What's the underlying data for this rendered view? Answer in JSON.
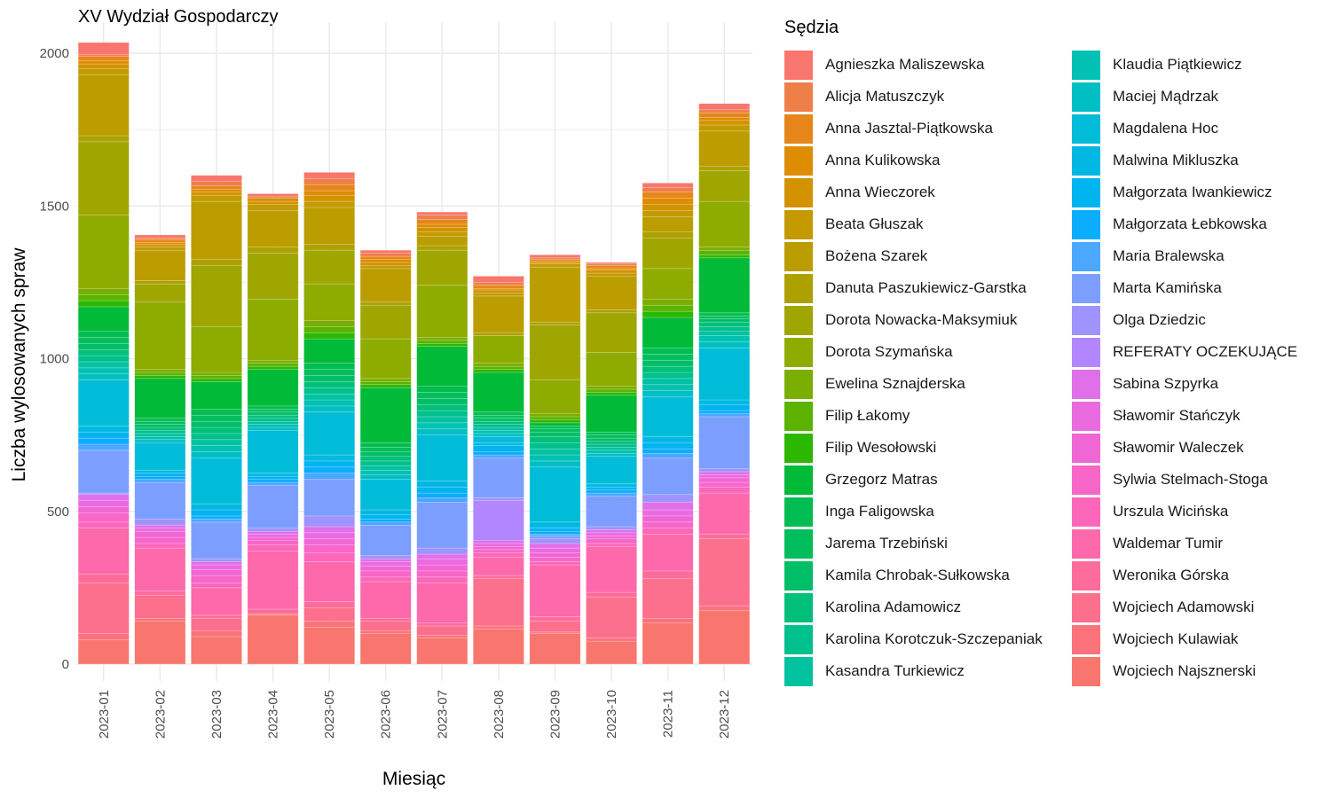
{
  "chart_data": {
    "type": "bar",
    "stacked": true,
    "title": "XV Wydział Gospodarczy",
    "xlabel": "Miesiąc",
    "ylabel": "Liczba wylosowanych spraw",
    "ylim": [
      0,
      2080
    ],
    "yticks": [
      0,
      500,
      1000,
      1500,
      2000
    ],
    "grid": true,
    "legend_title": "Sędzia",
    "legend_position": "right",
    "categories": [
      "2023-01",
      "2023-02",
      "2023-03",
      "2023-04",
      "2023-05",
      "2023-06",
      "2023-07",
      "2023-08",
      "2023-09",
      "2023-10",
      "2023-11",
      "2023-12"
    ],
    "series": [
      {
        "name": "Wojciech Najsznerski",
        "color": "#F8766D",
        "values": [
          80,
          140,
          90,
          160,
          120,
          100,
          85,
          115,
          100,
          75,
          135,
          175
        ]
      },
      {
        "name": "Wojciech Kulawiak",
        "color": "#FB727B",
        "values": [
          20,
          10,
          20,
          5,
          20,
          10,
          10,
          10,
          5,
          10,
          15,
          15
        ]
      },
      {
        "name": "Wojciech Adamowski",
        "color": "#FC6F8D",
        "values": [
          165,
          75,
          40,
          0,
          45,
          30,
          30,
          155,
          35,
          135,
          130,
          220
        ]
      },
      {
        "name": "Weronika Górska",
        "color": "#FE6C9C",
        "values": [
          30,
          15,
          10,
          15,
          20,
          10,
          10,
          10,
          15,
          15,
          25,
          15
        ]
      },
      {
        "name": "Waldemar Tumir",
        "color": "#FD69AB",
        "values": [
          150,
          140,
          90,
          190,
          130,
          120,
          130,
          60,
          170,
          150,
          120,
          135
        ]
      },
      {
        "name": "Urszula Wicińska",
        "color": "#FC67BA",
        "values": [
          20,
          15,
          15,
          20,
          30,
          15,
          20,
          15,
          10,
          10,
          20,
          20
        ]
      },
      {
        "name": "Sylwia Stelmach-Stoga",
        "color": "#F766C8",
        "values": [
          30,
          20,
          25,
          15,
          25,
          20,
          20,
          10,
          15,
          15,
          20,
          15
        ]
      },
      {
        "name": "Sławomir Waleczek",
        "color": "#F166D5",
        "values": [
          20,
          20,
          20,
          10,
          20,
          15,
          20,
          10,
          15,
          10,
          20,
          15
        ]
      },
      {
        "name": "Sławomir Stańczyk",
        "color": "#EA6AE0",
        "values": [
          20,
          10,
          15,
          10,
          20,
          15,
          20,
          10,
          15,
          10,
          20,
          10
        ]
      },
      {
        "name": "Sabina Szpyrka",
        "color": "#E06FEA",
        "values": [
          20,
          10,
          10,
          10,
          20,
          10,
          15,
          10,
          15,
          10,
          25,
          10
        ]
      },
      {
        "name": "REFERATY OCZEKUJĄCE",
        "color": "#B286FF",
        "values": [
          0,
          0,
          0,
          0,
          0,
          0,
          0,
          130,
          0,
          0,
          0,
          0
        ]
      },
      {
        "name": "Olga Dziedzic",
        "color": "#9E93FF",
        "values": [
          5,
          20,
          10,
          10,
          35,
          10,
          20,
          10,
          15,
          10,
          25,
          10
        ]
      },
      {
        "name": "Marta Kamińska",
        "color": "#7C9FFF",
        "values": [
          140,
          120,
          120,
          140,
          120,
          100,
          150,
          130,
          10,
          100,
          120,
          170
        ]
      },
      {
        "name": "Maria Bralewska",
        "color": "#4CA7FF",
        "values": [
          20,
          10,
          10,
          10,
          20,
          10,
          15,
          10,
          5,
          10,
          15,
          10
        ]
      },
      {
        "name": "Małgorzata Łebkowska",
        "color": "#0CADFF",
        "values": [
          20,
          10,
          10,
          10,
          20,
          10,
          15,
          10,
          10,
          10,
          15,
          10
        ]
      },
      {
        "name": "Małgorzata Iwankiewicz",
        "color": "#00B4F0",
        "values": [
          20,
          10,
          20,
          10,
          20,
          15,
          20,
          20,
          10,
          10,
          20,
          20
        ]
      },
      {
        "name": "Malwina Mikluszka",
        "color": "#00B8E2",
        "values": [
          20,
          10,
          20,
          10,
          20,
          15,
          20,
          10,
          20,
          10,
          20,
          15
        ]
      },
      {
        "name": "Magdalena Hoc",
        "color": "#00BCD8",
        "values": [
          150,
          90,
          150,
          140,
          140,
          100,
          150,
          20,
          180,
          90,
          130,
          170
        ]
      },
      {
        "name": "Maciej Mądrzak",
        "color": "#00BFC4",
        "values": [
          20,
          10,
          20,
          10,
          20,
          15,
          20,
          10,
          20,
          10,
          20,
          20
        ]
      },
      {
        "name": "Klaudia Piątkiewicz",
        "color": "#00C1B2",
        "values": [
          20,
          10,
          20,
          10,
          20,
          15,
          20,
          10,
          20,
          10,
          20,
          20
        ]
      },
      {
        "name": "Kasandra Turkiewicz",
        "color": "#00C2A1",
        "values": [
          20,
          10,
          20,
          10,
          20,
          15,
          20,
          10,
          20,
          10,
          20,
          15
        ]
      },
      {
        "name": "Karolina Korotczuk-Szczepaniak",
        "color": "#00C08D",
        "values": [
          20,
          10,
          20,
          10,
          20,
          15,
          20,
          10,
          20,
          10,
          20,
          15
        ]
      },
      {
        "name": "Karolina Adamowicz",
        "color": "#00BF78",
        "values": [
          20,
          10,
          20,
          10,
          20,
          15,
          20,
          10,
          20,
          10,
          20,
          15
        ]
      },
      {
        "name": "Kamila Chrobak-Sułkowska",
        "color": "#00BE67",
        "values": [
          20,
          10,
          20,
          10,
          20,
          15,
          20,
          10,
          15,
          10,
          20,
          10
        ]
      },
      {
        "name": "Jarema Trzebiński",
        "color": "#00BE5C",
        "values": [
          20,
          10,
          20,
          10,
          20,
          15,
          20,
          10,
          10,
          10,
          20,
          10
        ]
      },
      {
        "name": "Inga Faligowska",
        "color": "#00BD51",
        "values": [
          20,
          10,
          20,
          10,
          20,
          15,
          20,
          10,
          10,
          10,
          20,
          10
        ]
      },
      {
        "name": "Grzegorz Matras",
        "color": "#00BA38",
        "values": [
          80,
          130,
          90,
          120,
          80,
          180,
          130,
          130,
          10,
          120,
          100,
          180
        ]
      },
      {
        "name": "Filip Wesołowski",
        "color": "#2CB800",
        "values": [
          20,
          10,
          10,
          10,
          20,
          10,
          10,
          10,
          10,
          10,
          20,
          10
        ]
      },
      {
        "name": "Filip Łakomy",
        "color": "#5BB300",
        "values": [
          20,
          10,
          10,
          10,
          20,
          10,
          10,
          10,
          10,
          10,
          20,
          15
        ]
      },
      {
        "name": "Ewelina Sznajderska",
        "color": "#7AAE00",
        "values": [
          20,
          10,
          10,
          10,
          20,
          10,
          10,
          10,
          10,
          10,
          20,
          10
        ]
      },
      {
        "name": "Dorota Szymańska",
        "color": "#8EAB00",
        "values": [
          240,
          220,
          150,
          200,
          120,
          130,
          170,
          90,
          110,
          110,
          100,
          150
        ]
      },
      {
        "name": "Dorota Nowacka-Maksymiuk",
        "color": "#9FA600",
        "values": [
          240,
          60,
          200,
          150,
          110,
          110,
          115,
          0,
          180,
          130,
          100,
          100
        ]
      },
      {
        "name": "Danuta Paszukiewicz-Garstka",
        "color": "#ADA100",
        "values": [
          20,
          10,
          20,
          20,
          20,
          10,
          15,
          10,
          10,
          10,
          20,
          15
        ]
      },
      {
        "name": "Bożena Szarek",
        "color": "#BB9D00",
        "values": [
          200,
          100,
          190,
          120,
          120,
          110,
          30,
          120,
          180,
          110,
          50,
          115
        ]
      },
      {
        "name": "Beata Głuszak",
        "color": "#C49A00",
        "values": [
          20,
          10,
          20,
          20,
          20,
          10,
          15,
          10,
          10,
          10,
          20,
          20
        ]
      },
      {
        "name": "Anna Wieczorek",
        "color": "#D39200",
        "values": [
          15,
          10,
          10,
          10,
          20,
          10,
          15,
          10,
          5,
          10,
          20,
          15
        ]
      },
      {
        "name": "Anna Kulikowska",
        "color": "#DE8C00",
        "values": [
          10,
          5,
          10,
          10,
          15,
          10,
          10,
          5,
          5,
          5,
          20,
          10
        ]
      },
      {
        "name": "Anna Jasztal-Piątkowska",
        "color": "#E6861A",
        "values": [
          15,
          10,
          10,
          5,
          20,
          10,
          15,
          10,
          5,
          10,
          20,
          15
        ]
      },
      {
        "name": "Alicja Matuszczyk",
        "color": "#EF7F49",
        "values": [
          5,
          5,
          15,
          0,
          20,
          10,
          15,
          10,
          5,
          5,
          15,
          10
        ]
      },
      {
        "name": "Agnieszka Maliszewska",
        "color": "#F8766D",
        "values": [
          40,
          10,
          20,
          10,
          20,
          10,
          10,
          20,
          10,
          5,
          15,
          20
        ]
      }
    ]
  }
}
